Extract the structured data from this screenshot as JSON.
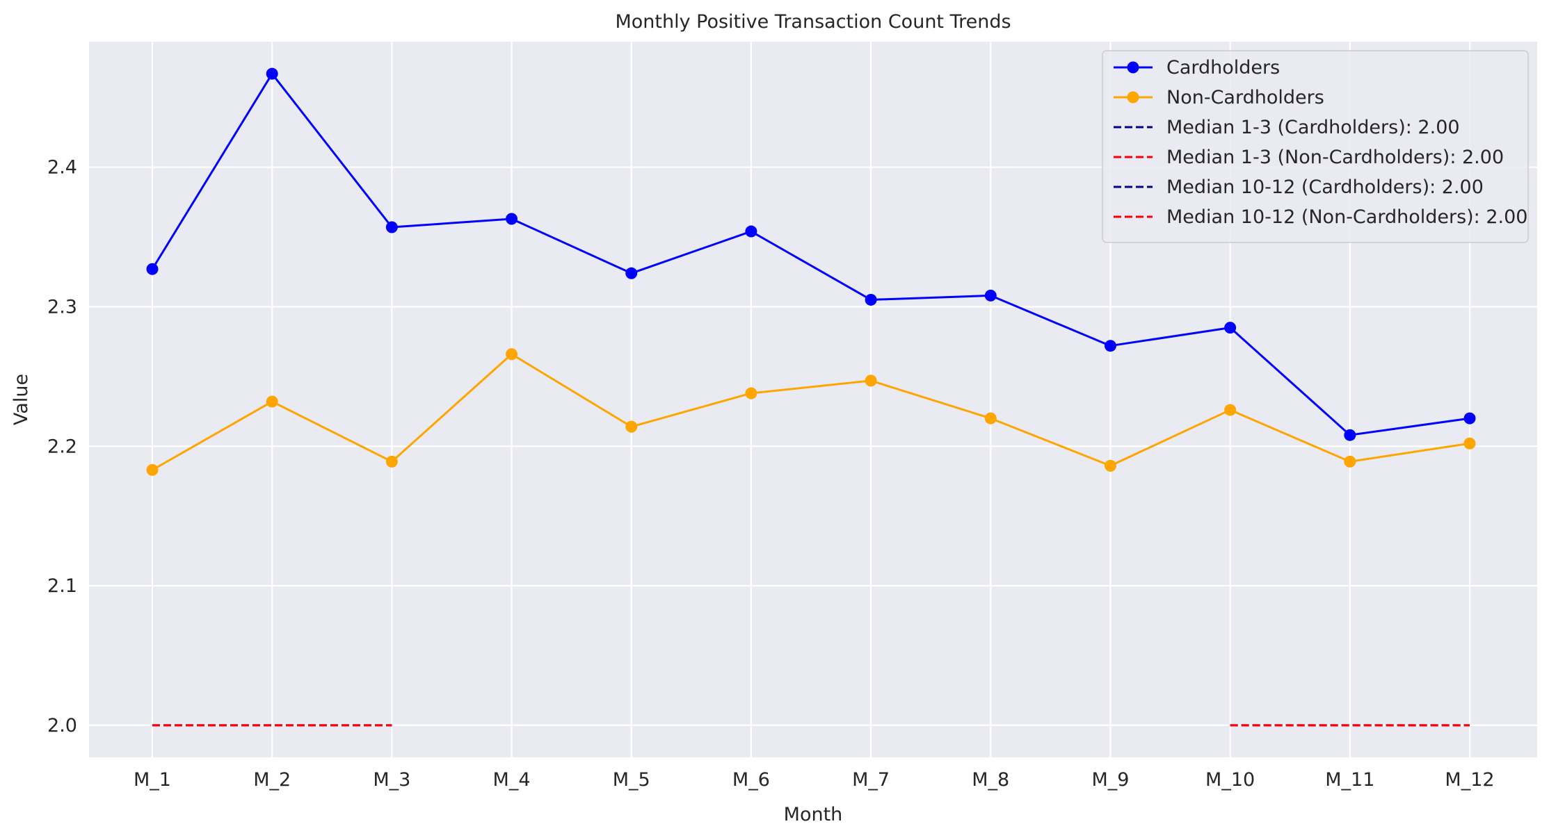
{
  "chart_data": {
    "type": "line",
    "title": "Monthly Positive Transaction Count Trends",
    "xlabel": "Month",
    "ylabel": "Value",
    "categories": [
      "M_1",
      "M_2",
      "M_3",
      "M_4",
      "M_5",
      "M_6",
      "M_7",
      "M_8",
      "M_9",
      "M_10",
      "M_11",
      "M_12"
    ],
    "ylim": [
      1.977,
      2.49
    ],
    "yticks": [
      2.0,
      2.1,
      2.2,
      2.3,
      2.4
    ],
    "ytick_labels": [
      "2.0",
      "2.1",
      "2.2",
      "2.3",
      "2.4"
    ],
    "grid": true,
    "legend_position": "top-right",
    "background_color": "#eaeaf2",
    "series": [
      {
        "name": "Cardholders",
        "color": "#0000ff",
        "style": "solid",
        "marker": "circle",
        "values": [
          2.327,
          2.467,
          2.357,
          2.363,
          2.324,
          2.354,
          2.305,
          2.308,
          2.272,
          2.285,
          2.208,
          2.22
        ]
      },
      {
        "name": "Non-Cardholders",
        "color": "#ffa500",
        "style": "solid",
        "marker": "circle",
        "values": [
          2.183,
          2.232,
          2.189,
          2.266,
          2.214,
          2.238,
          2.247,
          2.22,
          2.186,
          2.226,
          2.189,
          2.202
        ]
      }
    ],
    "reference_lines": [
      {
        "name": "Median 1-3 (Cardholders): 2.00",
        "color": "#00008b",
        "style": "dashed",
        "value": 2.0,
        "from": "M_1",
        "to": "M_3"
      },
      {
        "name": "Median 1-3 (Non-Cardholders): 2.00",
        "color": "#ff0000",
        "style": "dashed",
        "value": 2.0,
        "from": "M_1",
        "to": "M_3"
      },
      {
        "name": "Median 10-12 (Cardholders): 2.00",
        "color": "#00008b",
        "style": "dashed",
        "value": 2.0,
        "from": "M_10",
        "to": "M_12"
      },
      {
        "name": "Median 10-12 (Non-Cardholders): 2.00",
        "color": "#ff0000",
        "style": "dashed",
        "value": 2.0,
        "from": "M_10",
        "to": "M_12"
      }
    ]
  }
}
